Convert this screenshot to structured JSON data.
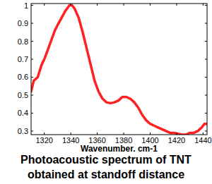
{
  "chart_data": {
    "type": "line",
    "title": "Photoacoustic spectrum of TNT obtained at standoff distance",
    "x_label": "Wavenumber, cm-1",
    "x": [
      1310,
      1312,
      1315,
      1318,
      1320,
      1322,
      1325,
      1328,
      1330,
      1333,
      1336,
      1339,
      1341,
      1343,
      1346,
      1349,
      1352,
      1355,
      1358,
      1361,
      1364,
      1367,
      1370,
      1373,
      1376,
      1379,
      1382,
      1385,
      1388,
      1391,
      1394,
      1397,
      1400,
      1403,
      1406,
      1409,
      1412,
      1415,
      1418,
      1421,
      1424,
      1427,
      1430,
      1433,
      1436,
      1439,
      1441,
      1443
    ],
    "series": [
      {
        "name": "TNT",
        "color": "#ff2020",
        "values": [
          0.52,
          0.58,
          0.6,
          0.67,
          0.7,
          0.74,
          0.8,
          0.86,
          0.89,
          0.93,
          0.97,
          1.0,
          1.0,
          0.98,
          0.93,
          0.85,
          0.76,
          0.67,
          0.58,
          0.52,
          0.48,
          0.46,
          0.455,
          0.46,
          0.47,
          0.49,
          0.49,
          0.48,
          0.46,
          0.43,
          0.39,
          0.36,
          0.34,
          0.33,
          0.32,
          0.31,
          0.3,
          0.29,
          0.29,
          0.285,
          0.28,
          0.28,
          0.29,
          0.29,
          0.3,
          0.32,
          0.34,
          0.34
        ]
      }
    ],
    "xlim": [
      1310,
      1443
    ],
    "ylim": [
      0.28,
      1.01
    ],
    "xticks": [
      1320,
      1340,
      1360,
      1380,
      1400,
      1420,
      1440
    ],
    "yticks": [
      0.3,
      0.4,
      0.5,
      0.6,
      0.7,
      0.8,
      0.9,
      1
    ],
    "grid": false
  }
}
